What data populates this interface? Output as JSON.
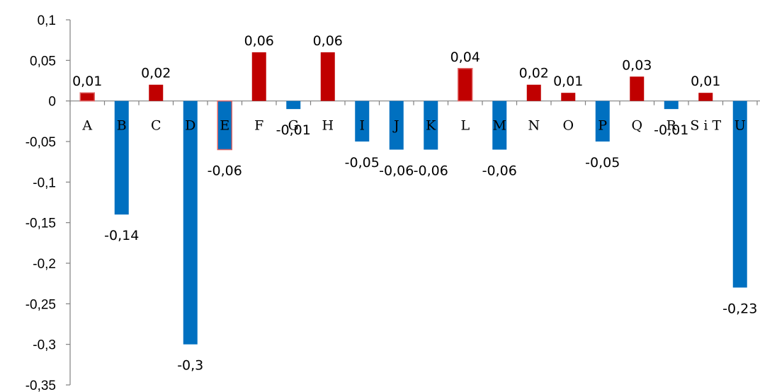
{
  "chart_data": {
    "type": "bar",
    "categories": [
      "A",
      "B",
      "C",
      "D",
      "E",
      "F",
      "G",
      "H",
      "I",
      "J",
      "K",
      "L",
      "M",
      "N",
      "O",
      "P",
      "Q",
      "R",
      "S i T",
      "U"
    ],
    "values": [
      0.01,
      -0.14,
      0.02,
      -0.3,
      -0.06,
      0.06,
      -0.01,
      0.06,
      -0.05,
      -0.06,
      -0.06,
      0.04,
      -0.06,
      0.02,
      0.01,
      -0.05,
      0.03,
      -0.01,
      0.01,
      -0.23
    ],
    "data_labels": [
      "0,01",
      "-0,14",
      "0,02",
      "-0,3",
      "-0,06",
      "0,06",
      "-0,01",
      "0,06",
      "-0,05",
      "-0,06",
      "-0,06",
      "0,04",
      "-0,06",
      "0,02",
      "0,01",
      "-0,05",
      "0,03",
      "-0,01",
      "0,01",
      "-0,23"
    ],
    "ylim": [
      -0.35,
      0.1
    ],
    "yticks": [
      0.1,
      0.05,
      0,
      -0.05,
      -0.1,
      -0.15,
      -0.2,
      -0.25,
      -0.3,
      -0.35
    ],
    "ytick_labels": [
      "0,1",
      "0,05",
      "0",
      "-0,05",
      "-0,1",
      "-0,15",
      "-0,2",
      "-0,25",
      "-0,3",
      "-0,35"
    ],
    "grid": false,
    "legend": "none",
    "colors": {
      "positive": "#C00000",
      "negative": "#0070C0",
      "axis": "#808080"
    }
  }
}
